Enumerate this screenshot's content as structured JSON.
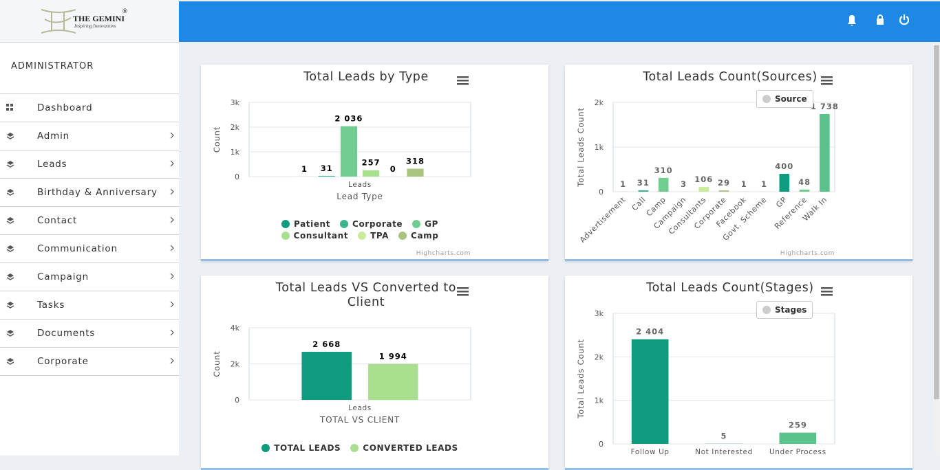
{
  "logo": {
    "name": "THE GEMINI",
    "mark": "®",
    "tagline": "Inspiring Innovations"
  },
  "sidebar": {
    "role": "ADMINISTRATOR",
    "menu": [
      "Dashboard",
      "Admin",
      "Leads",
      "Birthday & Anniversary",
      "Contact",
      "Communication",
      "Campaign",
      "Tasks",
      "Documents",
      "Corporate"
    ]
  },
  "chart_data": [
    {
      "type": "bar",
      "title": "Total Leads by Type",
      "y_title": "Count",
      "x_title": "Lead Type",
      "categories": [
        "Leads"
      ],
      "legend": "bottom",
      "credits": "Highcharts.com",
      "grid": true,
      "ylim": [
        0,
        3000
      ],
      "yticks": [
        0,
        {
          "value": 1000,
          "label": "1k"
        },
        {
          "value": 2000,
          "label": "2k"
        },
        {
          "value": 3000,
          "label": "3k"
        }
      ],
      "series": [
        {
          "name": "Patient",
          "color": "#0f9b7e",
          "values": [
            1
          ]
        },
        {
          "name": "Corporate",
          "color": "#3db38c",
          "values": [
            31
          ]
        },
        {
          "name": "GP",
          "color": "#70cc90",
          "values": [
            2036
          ],
          "value_labels": [
            "2 036"
          ]
        },
        {
          "name": "Consultant",
          "color": "#a8e08f",
          "values": [
            257
          ]
        },
        {
          "name": "TPA",
          "color": "#c9ec9b",
          "values": [
            0
          ]
        },
        {
          "name": "Camp",
          "color": "#a9c47f",
          "values": [
            318
          ]
        }
      ]
    },
    {
      "type": "bar",
      "title": "Total Leads Count(Sources)",
      "y_title": "Total Leads Count",
      "categories": [
        "Advertisement",
        "Call",
        "Camp",
        "Campaign",
        "Consultants",
        "Corporate",
        "Facebook",
        "Govt. Scheme",
        "GP",
        "Reference",
        "Walk In"
      ],
      "legend": "top-right",
      "credits": "Highcharts.com",
      "grid": true,
      "rotate_labels": true,
      "ylim": [
        0,
        2000
      ],
      "yticks": [
        0,
        {
          "value": 1000,
          "label": "1k"
        },
        {
          "value": 2000,
          "label": "2k"
        }
      ],
      "series": [
        {
          "name": "Source",
          "color": "#cccccc",
          "colors": [
            "#0f9b7e",
            "#3db38c",
            "#70cc90",
            "#a8e08f",
            "#c9ec9b",
            "#a9c47f",
            "#0f9b7e",
            "#3db38c",
            "#0f9b7e",
            "#70cc90",
            "#5cc28c"
          ],
          "values": [
            1,
            31,
            310,
            3,
            106,
            29,
            1,
            1,
            400,
            48,
            1738
          ],
          "value_labels": [
            "1",
            "31",
            "310",
            "3",
            "106",
            "29",
            "1",
            "1",
            "400",
            "48",
            "1 738"
          ]
        }
      ]
    },
    {
      "type": "bar",
      "title": "Total Leads VS Converted to Client",
      "y_title": "Count",
      "x_title": "TOTAL VS CLIENT",
      "categories": [
        "Leads"
      ],
      "legend": "bottom",
      "grid": true,
      "ylim": [
        0,
        4000
      ],
      "yticks": [
        0,
        {
          "value": 2000,
          "label": "2k"
        },
        {
          "value": 4000,
          "label": "4k"
        }
      ],
      "series": [
        {
          "name": "TOTAL LEADS",
          "color": "#0f9b7e",
          "values": [
            2668
          ],
          "value_labels": [
            "2 668"
          ]
        },
        {
          "name": "CONVERTED LEADS",
          "color": "#a8e08f",
          "values": [
            1994
          ],
          "value_labels": [
            "1 994"
          ]
        }
      ]
    },
    {
      "type": "bar",
      "title": "Total Leads Count(Stages)",
      "y_title": "Total Leads Count",
      "categories": [
        "Follow Up",
        "Not Interested",
        "Under Process"
      ],
      "legend": "top-right",
      "grid": true,
      "ylim": [
        0,
        3000
      ],
      "yticks": [
        0,
        {
          "value": 1000,
          "label": "1k"
        },
        {
          "value": 2000,
          "label": "2k"
        },
        {
          "value": 3000,
          "label": "3k"
        }
      ],
      "series": [
        {
          "name": "Stages",
          "color": "#cccccc",
          "colors": [
            "#0f9b7e",
            "#70cc90",
            "#5cc28c"
          ],
          "values": [
            2404,
            5,
            259
          ],
          "value_labels": [
            "2 404",
            "5",
            "259"
          ]
        }
      ]
    }
  ]
}
